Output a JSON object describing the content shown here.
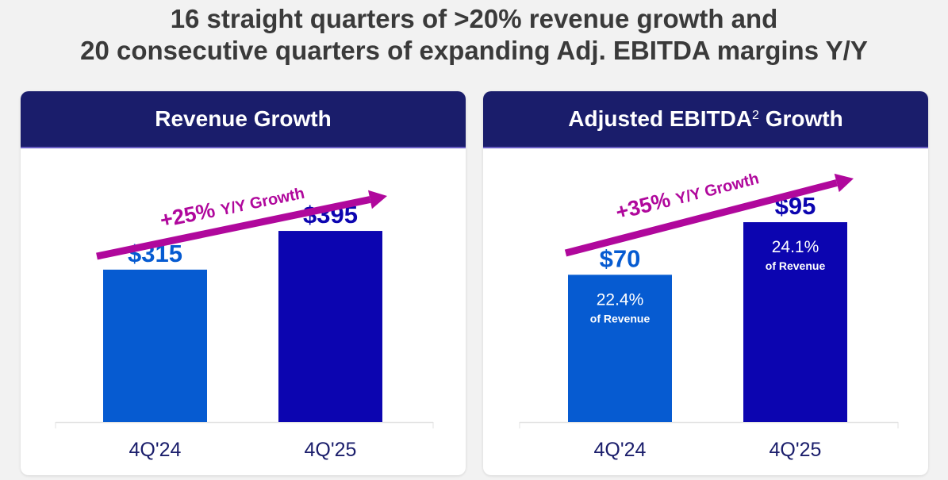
{
  "headline": {
    "line1": "16 straight quarters of >20% revenue growth and",
    "line2": "20 consecutive quarters of expanding Adj. EBITDA margins Y/Y"
  },
  "colors": {
    "header_bg": "#1a1d6b",
    "bar_prior": "#065bd1",
    "bar_current": "#0c05b0",
    "arrow": "#b0089c",
    "axis_label": "#1a1d6b",
    "headline": "#3a3a3a"
  },
  "chart_data": [
    {
      "type": "bar",
      "title": "Revenue Growth",
      "title_sup": "",
      "categories": [
        "4Q'24",
        "4Q'25"
      ],
      "values": [
        315,
        395
      ],
      "value_labels": [
        "$315",
        "$395"
      ],
      "inner_labels": [],
      "growth_annotation": {
        "pct": "+25%",
        "suffix": "Y/Y Growth"
      },
      "ylim": [
        0,
        500
      ],
      "grid": false,
      "xlabel": "",
      "ylabel": ""
    },
    {
      "type": "bar",
      "title": "Adjusted EBITDA",
      "title_sup": "2",
      "title_suffix": "Growth",
      "categories": [
        "4Q'24",
        "4Q'25"
      ],
      "values": [
        70,
        95
      ],
      "value_labels": [
        "$70",
        "$95"
      ],
      "inner_labels": [
        {
          "pct": "22.4%",
          "sub": "of Revenue"
        },
        {
          "pct": "24.1%",
          "sub": "of Revenue"
        }
      ],
      "growth_annotation": {
        "pct": "+35%",
        "suffix": "Y/Y Growth"
      },
      "ylim": [
        0,
        115
      ],
      "grid": false,
      "xlabel": "",
      "ylabel": ""
    }
  ]
}
